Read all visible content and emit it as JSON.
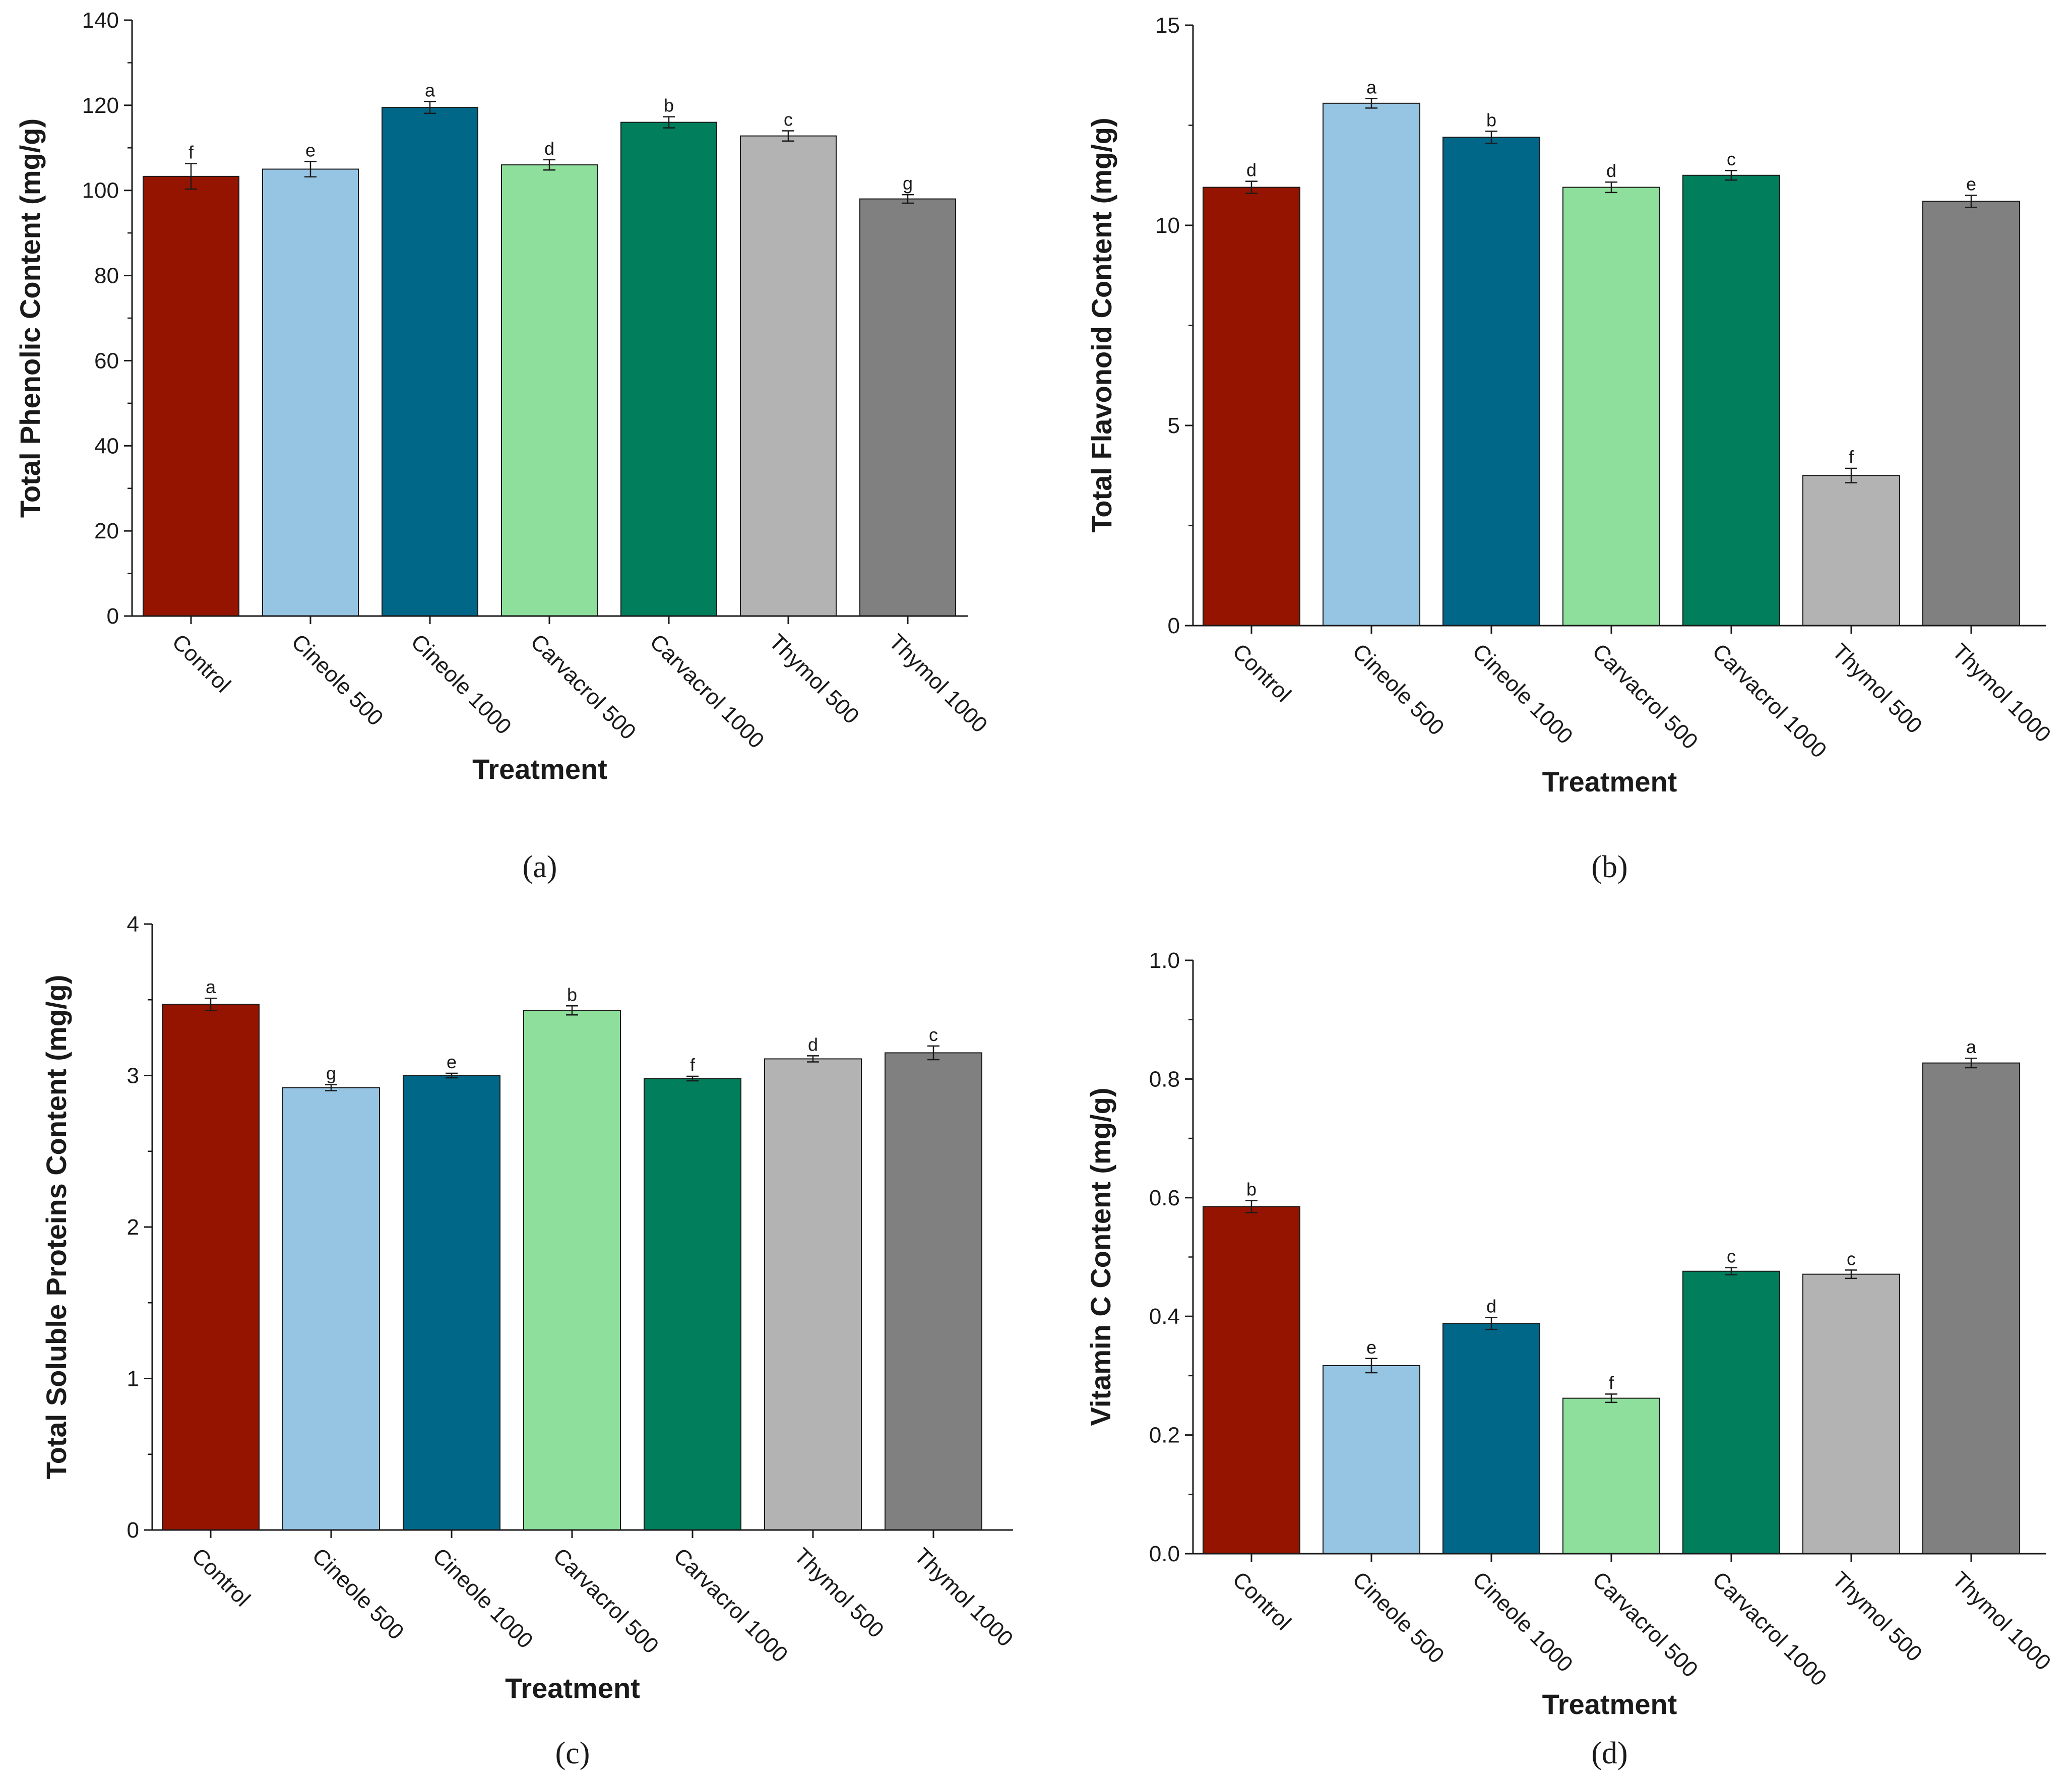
{
  "figure": {
    "categories": [
      "Control",
      "Cineole 500",
      "Cineole 1000",
      "Carvacrol 500",
      "Carvacrol 1000",
      "Thymol 500",
      "Thymol 1000"
    ],
    "bar_colors": [
      "#941400",
      "#96c5e4",
      "#016788",
      "#8ddf9b",
      "#017e5b",
      "#b3b3b3",
      "#808080"
    ]
  },
  "chart_data": [
    {
      "type": "bar",
      "panel_label": "(a)",
      "xlabel": "Treatment",
      "ylabel": "Total Phenolic Content (mg/g)",
      "ylim": [
        0,
        140
      ],
      "yticks": [
        "0",
        "20",
        "40",
        "60",
        "80",
        "100",
        "120",
        "140"
      ],
      "tick_values": [
        0,
        20,
        40,
        60,
        80,
        100,
        120,
        140
      ],
      "categories": [
        "Control",
        "Cineole 500",
        "Cineole 1000",
        "Carvacrol 500",
        "Carvacrol 1000",
        "Thymol 500",
        "Thymol 1000"
      ],
      "values": [
        103.3,
        105.0,
        119.5,
        106.0,
        116.0,
        112.8,
        98.0
      ],
      "errors": [
        3.0,
        1.8,
        1.4,
        1.2,
        1.3,
        1.2,
        1.0
      ],
      "letters": [
        "f",
        "e",
        "a",
        "d",
        "b",
        "c",
        "g"
      ]
    },
    {
      "type": "bar",
      "panel_label": "(b)",
      "xlabel": "Treatment",
      "ylabel": "Total Flavonoid Content (mg/g)",
      "ylim": [
        0,
        15
      ],
      "yticks": [
        "0",
        "5",
        "10",
        "15"
      ],
      "tick_values": [
        0,
        5,
        10,
        15
      ],
      "categories": [
        "Control",
        "Cineole 500",
        "Cineole 1000",
        "Carvacrol 500",
        "Carvacrol 1000",
        "Thymol 500",
        "Thymol 1000"
      ],
      "values": [
        10.95,
        13.05,
        12.2,
        10.95,
        11.25,
        3.75,
        10.6
      ],
      "errors": [
        0.15,
        0.12,
        0.15,
        0.13,
        0.12,
        0.18,
        0.15
      ],
      "letters": [
        "d",
        "a",
        "b",
        "d",
        "c",
        "f",
        "e"
      ]
    },
    {
      "type": "bar",
      "panel_label": "(c)",
      "xlabel": "Treatment",
      "ylabel": "Total Soluble Proteins Content (mg/g)",
      "ylim": [
        0,
        4
      ],
      "yticks": [
        "0",
        "1",
        "2",
        "3",
        "4"
      ],
      "tick_values": [
        0,
        1,
        2,
        3,
        4
      ],
      "categories": [
        "Control",
        "Cineole 500",
        "Cineole 1000",
        "Carvacrol 500",
        "Carvacrol 1000",
        "Thymol 500",
        "Thymol 1000"
      ],
      "values": [
        3.47,
        2.92,
        3.0,
        3.43,
        2.98,
        3.11,
        3.15
      ],
      "errors": [
        0.04,
        0.02,
        0.015,
        0.03,
        0.015,
        0.02,
        0.045
      ],
      "letters": [
        "a",
        "g",
        "e",
        "b",
        "f",
        "d",
        "c"
      ]
    },
    {
      "type": "bar",
      "panel_label": "(d)",
      "xlabel": "Treatment",
      "ylabel": "Vitamin C Content (mg/g)",
      "ylim": [
        0,
        1.0
      ],
      "yticks": [
        "0.0",
        "0.2",
        "0.4",
        "0.6",
        "0.8",
        "1.0"
      ],
      "tick_values": [
        0,
        0.2,
        0.4,
        0.6,
        0.8,
        1.0
      ],
      "categories": [
        "Control",
        "Cineole 500",
        "Cineole 1000",
        "Carvacrol 500",
        "Carvacrol 1000",
        "Thymol 500",
        "Thymol 1000"
      ],
      "values": [
        0.585,
        0.317,
        0.388,
        0.262,
        0.476,
        0.471,
        0.827
      ],
      "errors": [
        0.01,
        0.012,
        0.01,
        0.007,
        0.006,
        0.007,
        0.008
      ],
      "letters": [
        "b",
        "e",
        "d",
        "f",
        "c",
        "c",
        "a"
      ]
    }
  ]
}
